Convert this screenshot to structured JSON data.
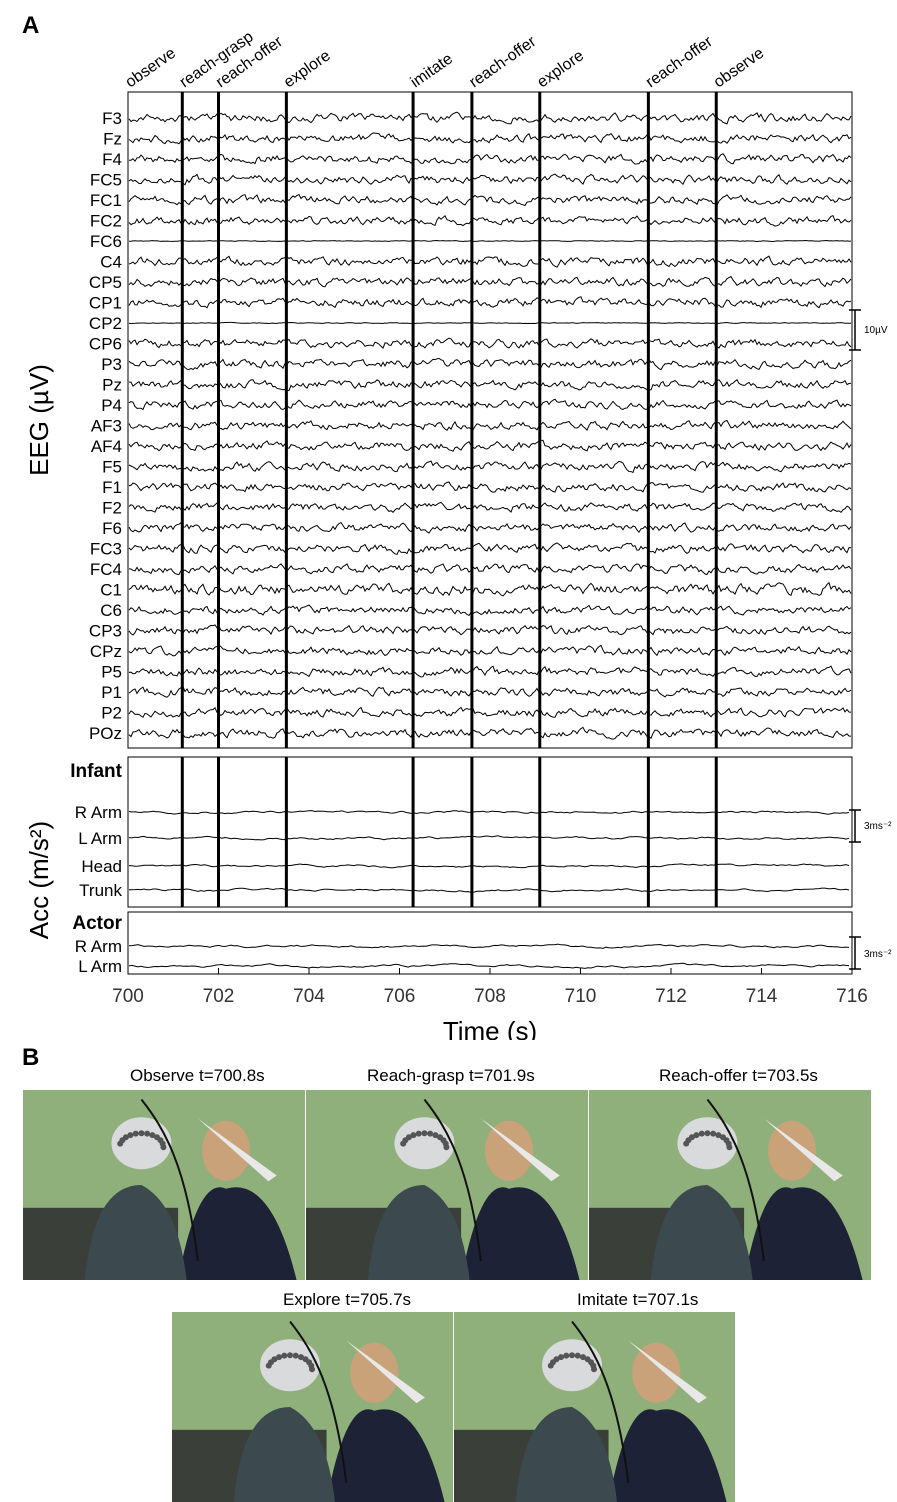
{
  "panel_a_letter": "A",
  "panel_b_letter": "B",
  "chart_data": {
    "type": "line",
    "xlabel": "Time (s)",
    "xlim": [
      700,
      716
    ],
    "xticks": [
      700,
      702,
      704,
      706,
      708,
      710,
      712,
      714,
      716
    ],
    "eeg_ylabel": "EEG (µV)",
    "eeg_scale_label": "10µV",
    "acc_ylabel": "Acc (m/s²)",
    "acc_scale_label": "3ms⁻²",
    "events": [
      {
        "label": "observe",
        "time": 700.0
      },
      {
        "label": "reach-grasp",
        "time": 701.2
      },
      {
        "label": "reach-offer",
        "time": 702.0
      },
      {
        "label": "explore",
        "time": 703.5
      },
      {
        "label": "imitate",
        "time": 706.3
      },
      {
        "label": "reach-offer",
        "time": 707.6
      },
      {
        "label": "explore",
        "time": 709.1
      },
      {
        "label": "reach-offer",
        "time": 711.5
      },
      {
        "label": "observe",
        "time": 713.0
      }
    ],
    "eeg_channels": [
      "F3",
      "Fz",
      "F4",
      "FC5",
      "FC1",
      "FC2",
      "FC6",
      "C4",
      "CP5",
      "CP1",
      "CP2",
      "CP6",
      "P3",
      "Pz",
      "P4",
      "AF3",
      "AF4",
      "F5",
      "F1",
      "F2",
      "F6",
      "FC3",
      "FC4",
      "C1",
      "C6",
      "CP3",
      "CPz",
      "P5",
      "P1",
      "P2",
      "POz"
    ],
    "infant_header": "Infant",
    "infant_channels": [
      "R Arm",
      "L Arm",
      "Head",
      "Trunk"
    ],
    "actor_header": "Actor",
    "actor_channels": [
      "R Arm",
      "L Arm"
    ]
  },
  "photos": {
    "row1": [
      {
        "caption": "Observe t=700.8s"
      },
      {
        "caption": "Reach-grasp t=701.9s"
      },
      {
        "caption": "Reach-offer t=703.5s"
      }
    ],
    "row2": [
      {
        "caption": "Explore t=705.7s"
      },
      {
        "caption": "Imitate t=707.1s"
      }
    ]
  }
}
